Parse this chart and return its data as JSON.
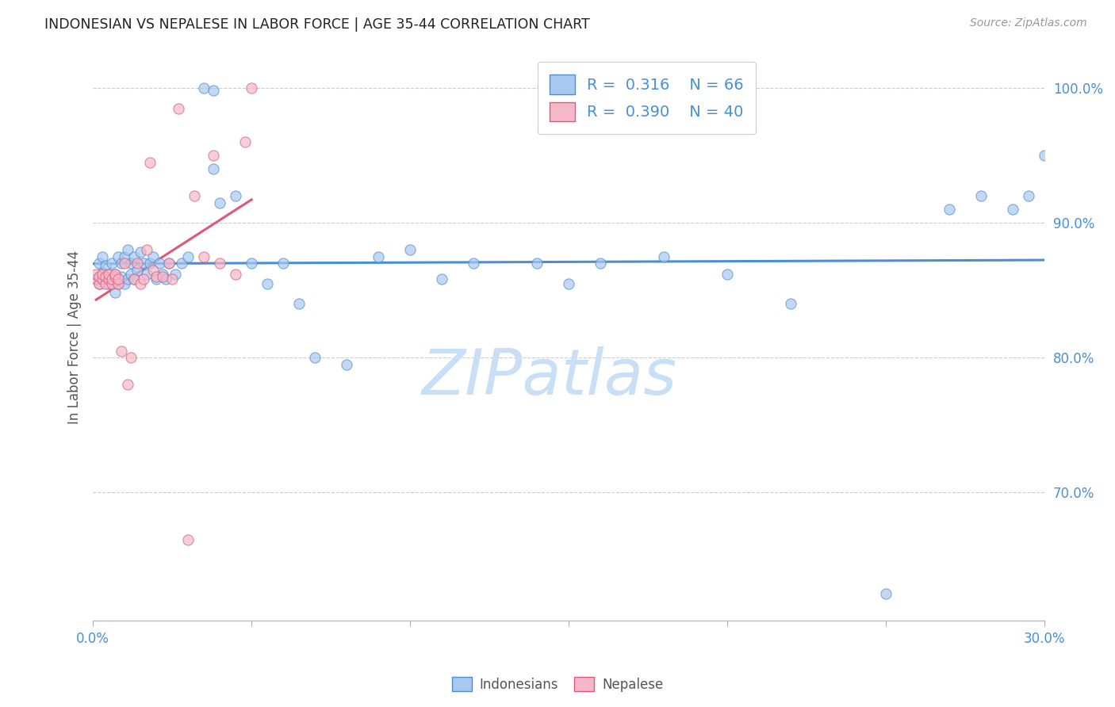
{
  "title": "INDONESIAN VS NEPALESE IN LABOR FORCE | AGE 35-44 CORRELATION CHART",
  "source": "Source: ZipAtlas.com",
  "ylabel": "In Labor Force | Age 35-44",
  "watermark": "ZIPatlas",
  "legend_blue_r": "0.316",
  "legend_blue_n": "66",
  "legend_pink_r": "0.390",
  "legend_pink_n": "40",
  "legend_blue_label": "Indonesians",
  "legend_pink_label": "Nepalese",
  "xlim": [
    0.0,
    0.3
  ],
  "ylim": [
    0.605,
    1.025
  ],
  "xticks": [
    0.0,
    0.05,
    0.1,
    0.15,
    0.2,
    0.25,
    0.3
  ],
  "xticklabels": [
    "0.0%",
    "",
    "",
    "",
    "",
    "",
    "30.0%"
  ],
  "yticks": [
    0.7,
    0.8,
    0.9,
    1.0
  ],
  "yticklabels": [
    "70.0%",
    "80.0%",
    "90.0%",
    "100.0%"
  ],
  "blue_x": [
    0.001,
    0.002,
    0.002,
    0.003,
    0.003,
    0.004,
    0.004,
    0.005,
    0.005,
    0.006,
    0.006,
    0.007,
    0.007,
    0.008,
    0.008,
    0.009,
    0.009,
    0.01,
    0.01,
    0.011,
    0.011,
    0.012,
    0.012,
    0.013,
    0.013,
    0.014,
    0.015,
    0.016,
    0.017,
    0.018,
    0.019,
    0.02,
    0.021,
    0.022,
    0.023,
    0.024,
    0.026,
    0.028,
    0.03,
    0.035,
    0.038,
    0.038,
    0.04,
    0.045,
    0.05,
    0.055,
    0.06,
    0.065,
    0.07,
    0.08,
    0.09,
    0.1,
    0.11,
    0.12,
    0.14,
    0.15,
    0.16,
    0.18,
    0.2,
    0.22,
    0.25,
    0.27,
    0.28,
    0.29,
    0.295,
    0.3
  ],
  "blue_y": [
    0.858,
    0.87,
    0.855,
    0.863,
    0.875,
    0.858,
    0.868,
    0.862,
    0.855,
    0.87,
    0.858,
    0.862,
    0.848,
    0.875,
    0.855,
    0.87,
    0.86,
    0.875,
    0.855,
    0.88,
    0.858,
    0.87,
    0.862,
    0.875,
    0.858,
    0.865,
    0.878,
    0.87,
    0.862,
    0.87,
    0.875,
    0.858,
    0.87,
    0.862,
    0.858,
    0.87,
    0.862,
    0.87,
    0.875,
    1.0,
    0.998,
    0.94,
    0.915,
    0.92,
    0.87,
    0.855,
    0.87,
    0.84,
    0.8,
    0.795,
    0.875,
    0.88,
    0.858,
    0.87,
    0.87,
    0.855,
    0.87,
    0.875,
    0.862,
    0.84,
    0.625,
    0.91,
    0.92,
    0.91,
    0.92,
    0.95
  ],
  "pink_x": [
    0.001,
    0.001,
    0.002,
    0.002,
    0.003,
    0.003,
    0.004,
    0.004,
    0.005,
    0.005,
    0.006,
    0.006,
    0.007,
    0.007,
    0.008,
    0.008,
    0.009,
    0.01,
    0.011,
    0.012,
    0.013,
    0.014,
    0.015,
    0.016,
    0.017,
    0.018,
    0.019,
    0.02,
    0.022,
    0.024,
    0.025,
    0.027,
    0.03,
    0.032,
    0.035,
    0.038,
    0.04,
    0.045,
    0.048,
    0.05
  ],
  "pink_y": [
    0.858,
    0.862,
    0.855,
    0.86,
    0.858,
    0.862,
    0.855,
    0.86,
    0.858,
    0.862,
    0.855,
    0.858,
    0.86,
    0.862,
    0.855,
    0.858,
    0.805,
    0.87,
    0.78,
    0.8,
    0.858,
    0.87,
    0.855,
    0.858,
    0.88,
    0.945,
    0.865,
    0.86,
    0.86,
    0.87,
    0.858,
    0.985,
    0.665,
    0.92,
    0.875,
    0.95,
    0.87,
    0.862,
    0.96,
    1.0
  ],
  "blue_color": "#a8c8f0",
  "pink_color": "#f5b8c8",
  "blue_line_color": "#4a8fd4",
  "pink_line_color": "#e05878",
  "grid_color": "#cccccc",
  "title_color": "#222222",
  "axis_label_color": "#555555",
  "tick_color": "#4a8fd4",
  "watermark_color": "#c8dff5",
  "scatter_alpha": 0.7,
  "scatter_size": 90
}
